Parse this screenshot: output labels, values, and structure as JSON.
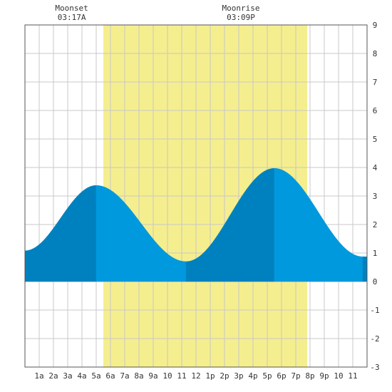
{
  "chart_data": {
    "type": "area",
    "title": "",
    "xlabel": "",
    "ylabel": "",
    "x_unit": "hours",
    "xlim": [
      0,
      24
    ],
    "ylim": [
      -3,
      9
    ],
    "grid": true,
    "x_tick_labels": [
      "1a",
      "2a",
      "3a",
      "4a",
      "5a",
      "6a",
      "7a",
      "8a",
      "9a",
      "10",
      "11",
      "12",
      "1p",
      "2p",
      "3p",
      "4p",
      "5p",
      "6p",
      "7p",
      "8p",
      "9p",
      "10",
      "11"
    ],
    "y_ticks": [
      9,
      8,
      7,
      6,
      5,
      4,
      3,
      2,
      1,
      0,
      -1,
      -2,
      -3
    ],
    "daylight": {
      "start": 5.5,
      "end": 19.8
    },
    "annotations": [
      {
        "title": "Moonset",
        "time": "03:17A",
        "x": 3.28
      },
      {
        "title": "Moonrise",
        "time": "03:09P",
        "x": 15.15
      }
    ],
    "tide": {
      "extrema": [
        {
          "x": 0.0,
          "y": 1.08
        },
        {
          "x": 5.0,
          "y": 3.37
        },
        {
          "x": 11.3,
          "y": 0.7
        },
        {
          "x": 17.5,
          "y": 3.97
        },
        {
          "x": 23.7,
          "y": 0.87
        }
      ],
      "segments": [
        {
          "from": 0.0,
          "to": 5.0,
          "trend": "rising"
        },
        {
          "from": 5.0,
          "to": 11.3,
          "trend": "falling"
        },
        {
          "from": 11.3,
          "to": 17.5,
          "trend": "rising"
        },
        {
          "from": 17.5,
          "to": 23.7,
          "trend": "falling"
        },
        {
          "from": 23.7,
          "to": 24.0,
          "trend": "rising"
        }
      ]
    },
    "colors": {
      "rising": "#0081bf",
      "falling": "#0099dd",
      "daylight": "#f5ee8e",
      "grid": "#c8c8c8",
      "frame": "#555555"
    }
  }
}
